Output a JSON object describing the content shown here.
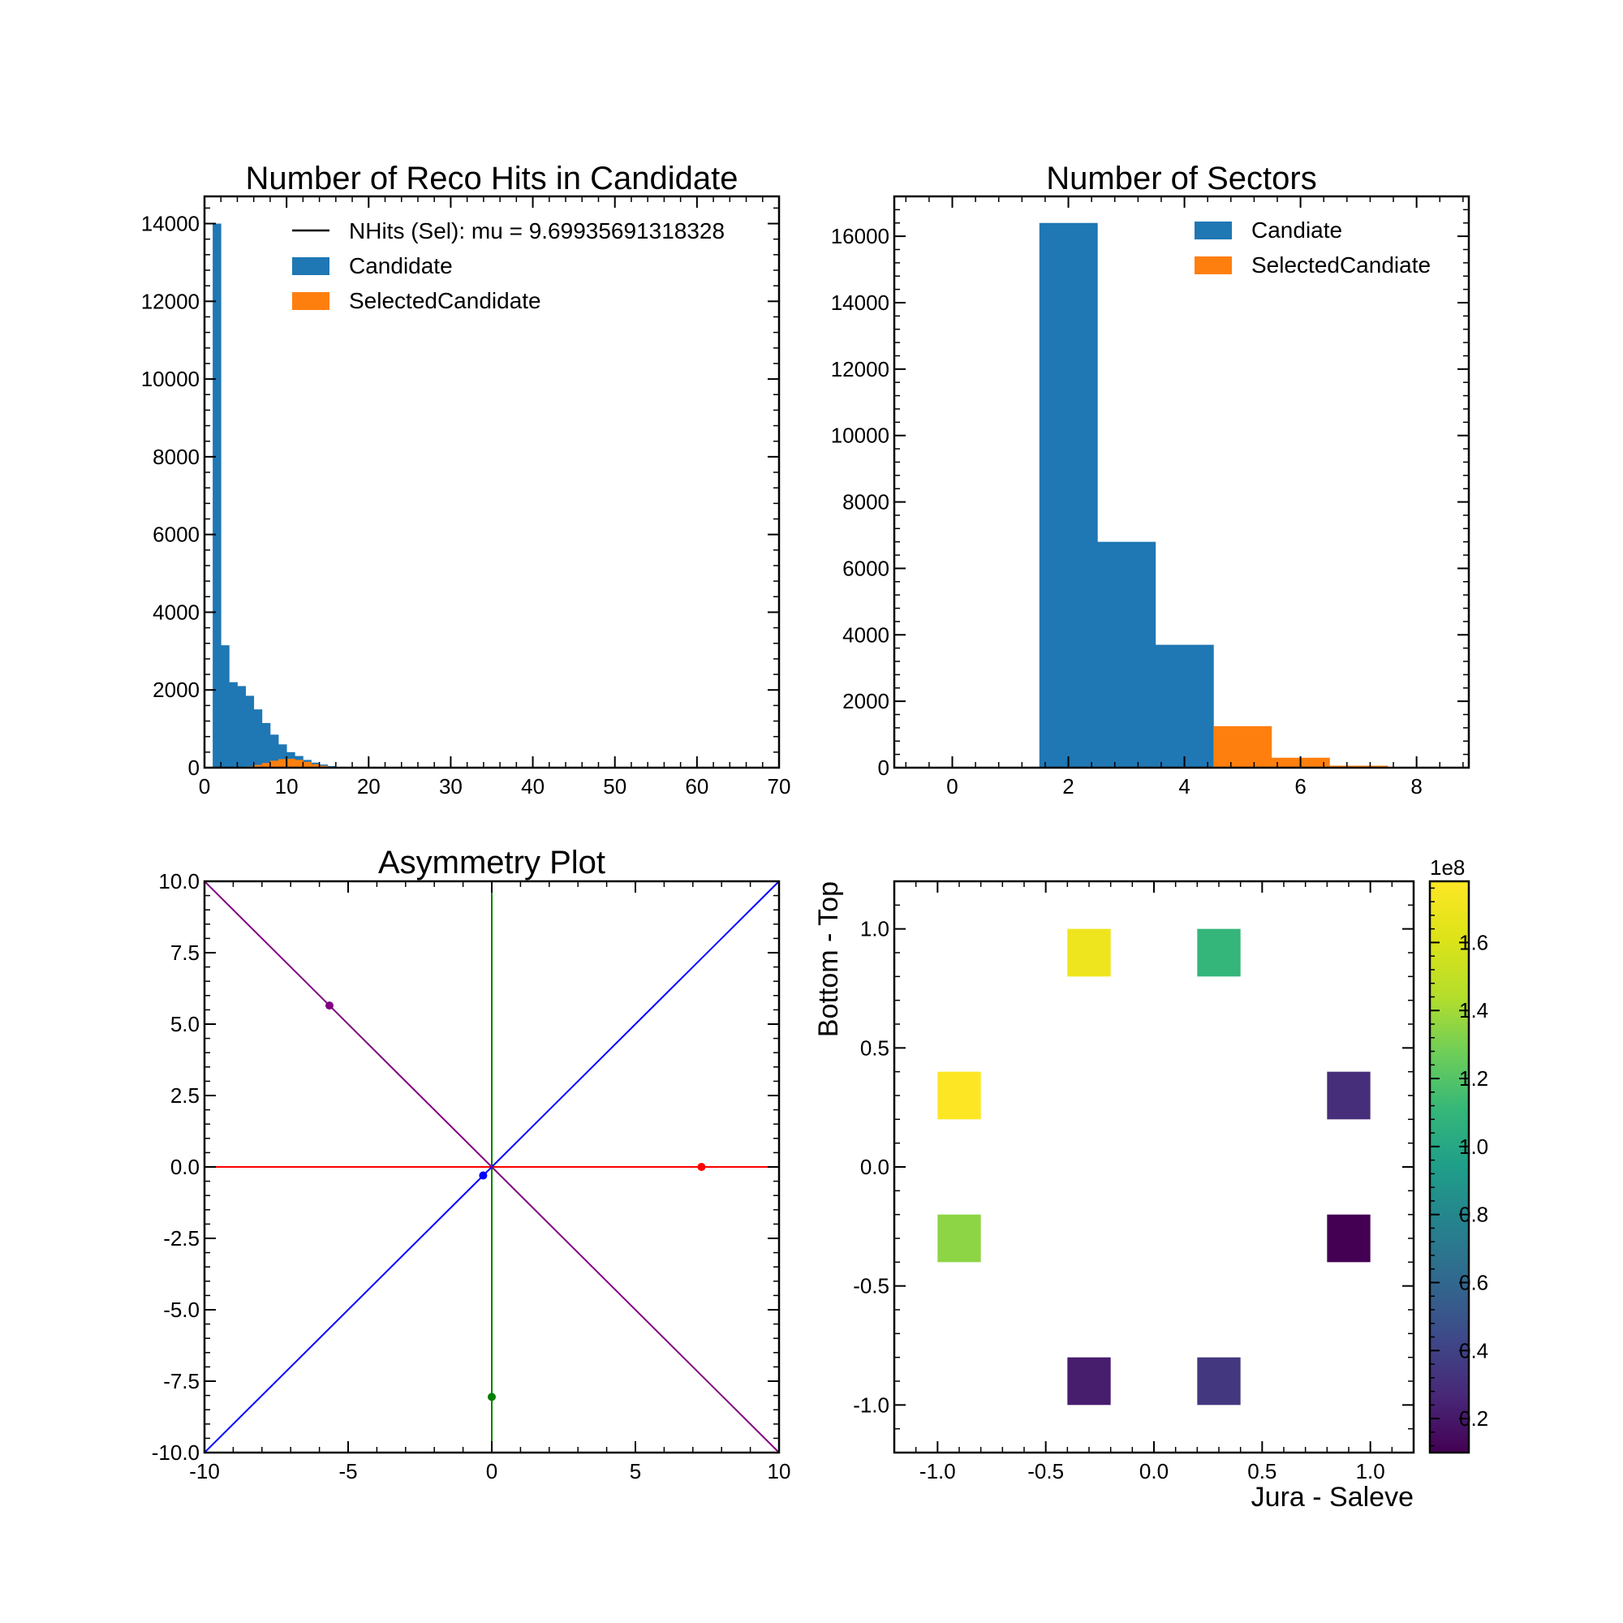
{
  "colors": {
    "candidate": "#1f77b4",
    "selected": "#ff7f0e",
    "black": "#000000",
    "red": "#ff0000",
    "green": "#008000",
    "blue": "#0000ff",
    "purple": "#800080"
  },
  "chart_data": [
    {
      "type": "bar",
      "subtype": "histogram",
      "title": "Number of Reco Hits in Candidate",
      "xlabel": "",
      "ylabel": "",
      "xlim": [
        0,
        70
      ],
      "ylim": [
        0,
        14700
      ],
      "bin_width": 1,
      "x_ticks": [
        0,
        10,
        20,
        30,
        40,
        50,
        60,
        70
      ],
      "y_ticks": [
        0,
        2000,
        4000,
        6000,
        8000,
        10000,
        12000,
        14000
      ],
      "legend_position": "top-right",
      "legend": [
        {
          "label": "NHits (Sel): mu = 9.69935691318328",
          "kind": "line"
        },
        {
          "label": "Candidate",
          "kind": "patch"
        },
        {
          "label": "SelectedCandidate",
          "kind": "patch"
        }
      ],
      "series": [
        {
          "name": "Candidate",
          "bin_edges": [
            1,
            2,
            3,
            4,
            5,
            6,
            7,
            8,
            9,
            10,
            11,
            12,
            13,
            14,
            15,
            16,
            17
          ],
          "values": [
            14000,
            3150,
            2200,
            2100,
            1850,
            1500,
            1150,
            850,
            600,
            400,
            300,
            200,
            130,
            80,
            40,
            20
          ]
        },
        {
          "name": "SelectedCandidate",
          "bin_edges": [
            4,
            5,
            6,
            7,
            8,
            9,
            10,
            11,
            12,
            13,
            14,
            15,
            16,
            17
          ],
          "values": [
            10,
            30,
            70,
            120,
            180,
            220,
            230,
            200,
            150,
            90,
            50,
            20,
            8
          ]
        }
      ]
    },
    {
      "type": "bar",
      "subtype": "histogram",
      "title": "Number of Sectors",
      "xlabel": "",
      "ylabel": "",
      "xlim": [
        -1,
        8.9
      ],
      "ylim": [
        0,
        17200
      ],
      "bin_width": 1,
      "x_ticks": [
        0,
        2,
        4,
        6,
        8
      ],
      "y_ticks": [
        0,
        2000,
        4000,
        6000,
        8000,
        10000,
        12000,
        14000,
        16000
      ],
      "legend_position": "top-right",
      "legend": [
        {
          "label": "Candiate",
          "kind": "patch"
        },
        {
          "label": "SelectedCandiate",
          "kind": "patch"
        }
      ],
      "series": [
        {
          "name": "Candiate",
          "bin_edges": [
            1.5,
            2.5,
            3.5,
            4.5
          ],
          "values": [
            16400,
            6800,
            3700
          ]
        },
        {
          "name": "SelectedCandiate",
          "bin_edges": [
            4.5,
            5.5,
            6.5,
            7.5
          ],
          "values": [
            1250,
            300,
            60
          ]
        }
      ]
    },
    {
      "type": "line",
      "title": "Asymmetry Plot",
      "xlabel": "",
      "ylabel": "",
      "xlim": [
        -10,
        10
      ],
      "ylim": [
        -10,
        10
      ],
      "x_ticks": [
        -10,
        -5,
        0,
        5,
        10
      ],
      "y_ticks": [
        -10.0,
        -7.5,
        -5.0,
        -2.5,
        0.0,
        2.5,
        5.0,
        7.5,
        10.0
      ],
      "y_tick_labels": [
        "-10.0",
        "-7.5",
        "-5.0",
        "-2.5",
        "0.0",
        "2.5",
        "5.0",
        "7.5",
        "10.0"
      ],
      "lines": [
        {
          "color": "red",
          "x": [
            -10,
            10
          ],
          "y": [
            0,
            0
          ]
        },
        {
          "color": "green",
          "x": [
            0,
            0
          ],
          "y": [
            -10,
            10
          ]
        },
        {
          "color": "blue",
          "x": [
            -10,
            10
          ],
          "y": [
            -10,
            10
          ]
        },
        {
          "color": "purple",
          "x": [
            -10,
            10
          ],
          "y": [
            10,
            -10
          ]
        }
      ],
      "points": [
        {
          "color": "purple",
          "x": -5.65,
          "y": 5.65
        },
        {
          "color": "blue",
          "x": -0.3,
          "y": -0.3
        },
        {
          "color": "red",
          "x": 7.3,
          "y": 0
        },
        {
          "color": "green",
          "x": 0,
          "y": -8.05
        }
      ]
    },
    {
      "type": "heatmap",
      "title": "",
      "xlabel": "Jura - Saleve",
      "ylabel": "Bottom - Top",
      "xlim": [
        -1.2,
        1.2
      ],
      "ylim": [
        -1.2,
        1.2
      ],
      "x_ticks": [
        -1.0,
        -0.5,
        0.0,
        0.5,
        1.0
      ],
      "x_tick_labels": [
        "-1.0",
        "-0.5",
        "0.0",
        "0.5",
        "1.0"
      ],
      "y_ticks": [
        -1.0,
        -0.5,
        0.0,
        0.5,
        1.0
      ],
      "y_tick_labels": [
        "-1.0",
        "-0.5",
        "0.0",
        "0.5",
        "1.0"
      ],
      "cell_size": 0.2,
      "colormap": "viridis",
      "colorbar": {
        "multiplier": "1e8",
        "range": [
          0.1,
          1.78
        ],
        "ticks": [
          0.2,
          0.4,
          0.6,
          0.8,
          1.0,
          1.2,
          1.4,
          1.6
        ],
        "tick_labels": [
          "0.2",
          "0.4",
          "0.6",
          "0.8",
          "1.0",
          "1.2",
          "1.4",
          "1.6"
        ]
      },
      "cells": [
        {
          "x": -0.3,
          "y": 0.9,
          "value": 1.7
        },
        {
          "x": 0.3,
          "y": 0.9,
          "value": 1.1
        },
        {
          "x": -0.9,
          "y": 0.3,
          "value": 1.78
        },
        {
          "x": 0.9,
          "y": 0.3,
          "value": 0.3
        },
        {
          "x": -0.9,
          "y": -0.3,
          "value": 1.35
        },
        {
          "x": 0.9,
          "y": -0.3,
          "value": 0.1
        },
        {
          "x": -0.3,
          "y": -0.9,
          "value": 0.22
        },
        {
          "x": 0.3,
          "y": -0.9,
          "value": 0.35
        }
      ]
    }
  ]
}
